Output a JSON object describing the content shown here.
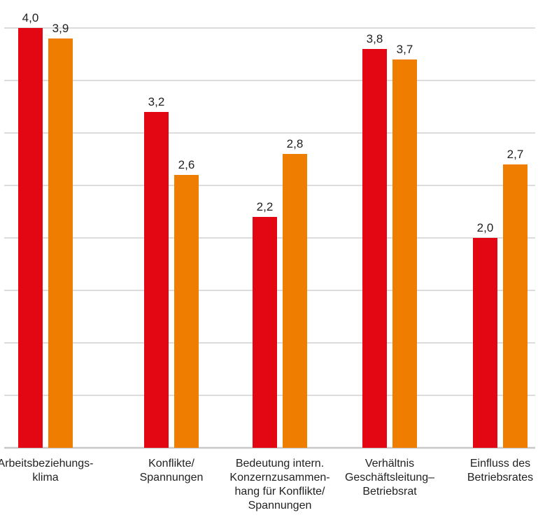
{
  "chart_data": {
    "type": "bar",
    "categories": [
      [
        "Arbeitsbeziehungs-",
        "klima"
      ],
      [
        "Konflikte/",
        "Spannungen"
      ],
      [
        "Bedeutung intern.",
        "Konzernzusammen-",
        "hang für Konflikte/",
        "Spannungen"
      ],
      [
        "Verhältnis",
        "Geschäftsleitung–",
        "Betriebsrat"
      ],
      [
        "Einfluss des",
        "Betriebsrates"
      ]
    ],
    "series": [
      {
        "values": [
          4.0,
          3.2,
          2.2,
          3.8,
          2.0
        ],
        "labels": [
          "4,0",
          "3,2",
          "2,2",
          "3,8",
          "2,0"
        ],
        "color": "#e30613"
      },
      {
        "values": [
          3.9,
          2.6,
          2.8,
          3.7,
          2.7
        ],
        "labels": [
          "3,9",
          "2,6",
          "2,8",
          "3,7",
          "2,7"
        ],
        "color": "#ef7d00"
      }
    ],
    "ylim": [
      0,
      4.0
    ],
    "gridlines": 8,
    "grid": true,
    "legend": "none"
  }
}
